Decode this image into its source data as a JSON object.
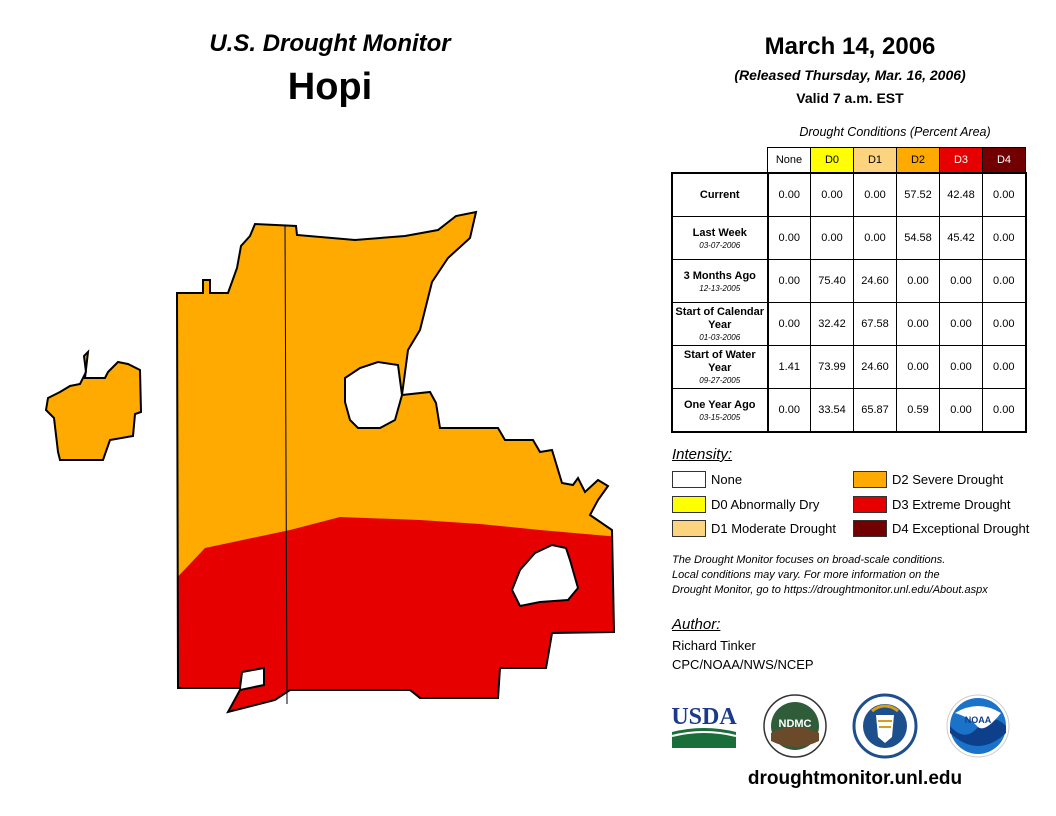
{
  "header": {
    "subtitle": "U.S. Drought Monitor",
    "region": "Hopi",
    "date": "March 14, 2006",
    "released": "(Released Thursday, Mar. 16, 2006)",
    "valid": "Valid 7 a.m. EST"
  },
  "table": {
    "caption": "Drought Conditions (Percent Area)",
    "columns": [
      "None",
      "D0",
      "D1",
      "D2",
      "D3",
      "D4"
    ],
    "column_colors": [
      "#ffffff",
      "#ffff00",
      "#fcd37f",
      "#ffaa00",
      "#e60000",
      "#730000"
    ],
    "rows": [
      {
        "label": "Current",
        "date": "",
        "values": [
          "0.00",
          "0.00",
          "0.00",
          "57.52",
          "42.48",
          "0.00"
        ]
      },
      {
        "label": "Last Week",
        "date": "03-07-2006",
        "values": [
          "0.00",
          "0.00",
          "0.00",
          "54.58",
          "45.42",
          "0.00"
        ]
      },
      {
        "label": "3 Months Ago",
        "date": "12-13-2005",
        "values": [
          "0.00",
          "75.40",
          "24.60",
          "0.00",
          "0.00",
          "0.00"
        ]
      },
      {
        "label": "Start of Calendar Year",
        "date": "01-03-2006",
        "values": [
          "0.00",
          "32.42",
          "67.58",
          "0.00",
          "0.00",
          "0.00"
        ]
      },
      {
        "label": "Start of Water Year",
        "date": "09-27-2005",
        "values": [
          "1.41",
          "73.99",
          "24.60",
          "0.00",
          "0.00",
          "0.00"
        ]
      },
      {
        "label": "One Year Ago",
        "date": "03-15-2005",
        "values": [
          "0.00",
          "33.54",
          "65.87",
          "0.59",
          "0.00",
          "0.00"
        ]
      }
    ]
  },
  "legend": {
    "title": "Intensity:",
    "items": [
      {
        "label": "None",
        "color": "#ffffff"
      },
      {
        "label": "D0 Abnormally Dry",
        "color": "#ffff00"
      },
      {
        "label": "D1 Moderate Drought",
        "color": "#fcd37f"
      },
      {
        "label": "D2 Severe Drought",
        "color": "#ffaa00"
      },
      {
        "label": "D3 Extreme Drought",
        "color": "#e60000"
      },
      {
        "label": "D4 Exceptional Drought",
        "color": "#730000"
      }
    ]
  },
  "note": {
    "line1": "The Drought Monitor focuses on broad-scale conditions.",
    "line2": "Local conditions may vary. For more information on the",
    "line3": "Drought Monitor, go to https://droughtmonitor.unl.edu/About.aspx"
  },
  "author": {
    "title": "Author:",
    "name": "Richard Tinker",
    "org": "CPC/NOAA/NWS/NCEP"
  },
  "logos": {
    "usda": "USDA",
    "ndmc": "NDMC",
    "noaa": "NOAA"
  },
  "map_colors": {
    "d2": "#ffaa00",
    "d3": "#e60000"
  },
  "url": "droughtmonitor.unl.edu"
}
